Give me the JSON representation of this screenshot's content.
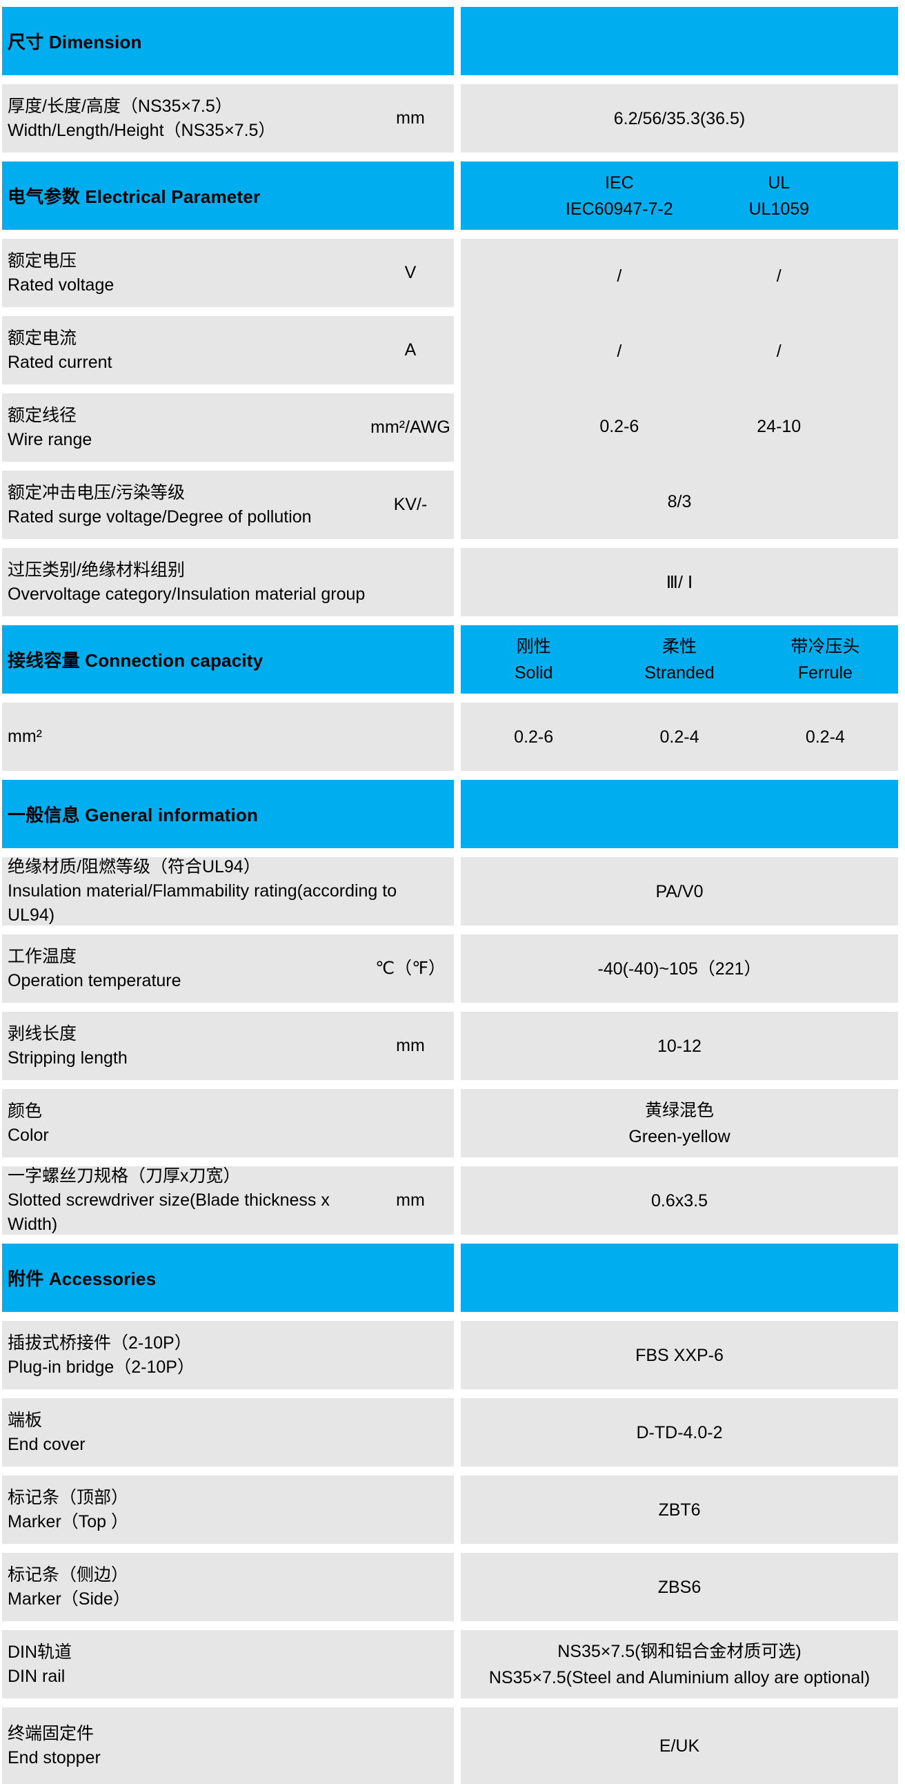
{
  "colors": {
    "accent_cyan": "#00AEEF",
    "row_gray": "#E6E6E6",
    "text": "#000000",
    "background": "#FFFFFF"
  },
  "table": {
    "rows": [
      {
        "kind": "header",
        "id": "dimension",
        "title": "尺寸 Dimension",
        "right": {
          "type": "empty"
        }
      },
      {
        "kind": "row",
        "id": "size",
        "label_zh": "厚度/长度/高度（NS35×7.5）",
        "label_en": "Width/Length/Height（NS35×7.5）",
        "unit": "mm",
        "value": "6.2/56/35.3(36.5)"
      },
      {
        "kind": "header",
        "id": "electrical-parameter",
        "title": "电气参数 Electrical Parameter",
        "right": {
          "type": "cols2",
          "cols": [
            {
              "top": "IEC",
              "bottom": "IEC60947-7-2"
            },
            {
              "top": "UL",
              "bottom": "UL1059"
            }
          ]
        }
      },
      {
        "kind": "group",
        "id": "electrical-group",
        "left_rows": [
          {
            "label_zh": "额定电压",
            "label_en": "Rated voltage",
            "unit": "V"
          },
          {
            "label_zh": "额定电流",
            "label_en": "Rated current",
            "unit": "A"
          },
          {
            "label_zh": "额定线径",
            "label_en": "Wire range",
            "unit": "mm²/AWG"
          },
          {
            "label_zh": "额定冲击电压/污染等级",
            "label_en": "Rated surge voltage/Degree of pollution",
            "unit": "KV/-"
          }
        ],
        "right_bands": [
          {
            "type": "pair",
            "iec": "/",
            "ul": "/"
          },
          {
            "type": "pair",
            "iec": "/",
            "ul": "/"
          },
          {
            "type": "pair",
            "iec": "0.2-6",
            "ul": "24-10"
          },
          {
            "type": "single",
            "value": "8/3"
          }
        ]
      },
      {
        "kind": "row",
        "id": "overvoltage",
        "label_zh": "过压类别/绝缘材料组别",
        "label_en": "Overvoltage category/Insulation material group",
        "unit": "",
        "value": "Ⅲ/ Ⅰ"
      },
      {
        "kind": "header",
        "id": "connection-capacity",
        "title": "接线容量 Connection capacity",
        "right": {
          "type": "cols3",
          "cols": [
            {
              "top": "刚性",
              "bottom": "Solid"
            },
            {
              "top": "柔性",
              "bottom": "Stranded"
            },
            {
              "top": "带冷压头",
              "bottom": "Ferrule"
            }
          ]
        }
      },
      {
        "kind": "row",
        "id": "capacity-mm2",
        "label_zh": "mm²",
        "label_en": "",
        "unit": "",
        "value3": [
          "0.2-6",
          "0.2-4",
          "0.2-4"
        ]
      },
      {
        "kind": "header",
        "id": "general-information",
        "title": "一般信息 General information",
        "right": {
          "type": "empty"
        }
      },
      {
        "kind": "row",
        "id": "insulation",
        "label_zh": "绝缘材质/阻燃等级（符合UL94）",
        "label_en": "Insulation material/Flammability rating(according to UL94)",
        "unit": "",
        "value": "PA/V0"
      },
      {
        "kind": "row",
        "id": "operation-temperature",
        "label_zh": "工作温度",
        "label_en": "Operation temperature",
        "unit": "℃（℉）",
        "value": "-40(-40)~105（221）"
      },
      {
        "kind": "row",
        "id": "stripping-length",
        "label_zh": "剥线长度",
        "label_en": "Stripping length",
        "unit": "mm",
        "value": "10-12"
      },
      {
        "kind": "row",
        "id": "color",
        "label_zh": "颜色",
        "label_en": "Color",
        "unit": "",
        "value_lines": [
          "黄绿混色",
          "Green-yellow"
        ]
      },
      {
        "kind": "row",
        "id": "screwdriver-size",
        "label_zh": "一字螺丝刀规格（刀厚x刀宽）",
        "label_en": "Slotted screwdriver size(Blade thickness x Width)",
        "unit": "mm",
        "value": "0.6x3.5"
      },
      {
        "kind": "header",
        "id": "accessories",
        "title": "附件 Accessories",
        "right": {
          "type": "empty"
        }
      },
      {
        "kind": "row",
        "id": "plug-in-bridge",
        "label_zh": "插拔式桥接件（2-10P）",
        "label_en": "Plug-in bridge（2-10P）",
        "unit": "",
        "value": "FBS XXP-6"
      },
      {
        "kind": "row",
        "id": "end-cover",
        "label_zh": "端板",
        "label_en": "End cover",
        "unit": "",
        "value": "D-TD-4.0-2"
      },
      {
        "kind": "row",
        "id": "marker-top",
        "label_zh": "标记条（顶部）",
        "label_en": "Marker（Top ）",
        "unit": "",
        "value": "ZBT6"
      },
      {
        "kind": "row",
        "id": "marker-side",
        "label_zh": "标记条（侧边）",
        "label_en": "Marker（Side）",
        "unit": "",
        "value": "ZBS6"
      },
      {
        "kind": "row",
        "id": "din-rail",
        "label_zh": "DIN轨道",
        "label_en": "DIN rail",
        "unit": "",
        "value_lines": [
          "NS35×7.5(钢和铝合金材质可选)",
          "NS35×7.5(Steel and Aluminium alloy are optional)"
        ]
      },
      {
        "kind": "row",
        "id": "end-stopper",
        "label_zh": "终端固定件",
        "label_en": "End stopper",
        "unit": "",
        "value": "E/UK"
      }
    ]
  }
}
